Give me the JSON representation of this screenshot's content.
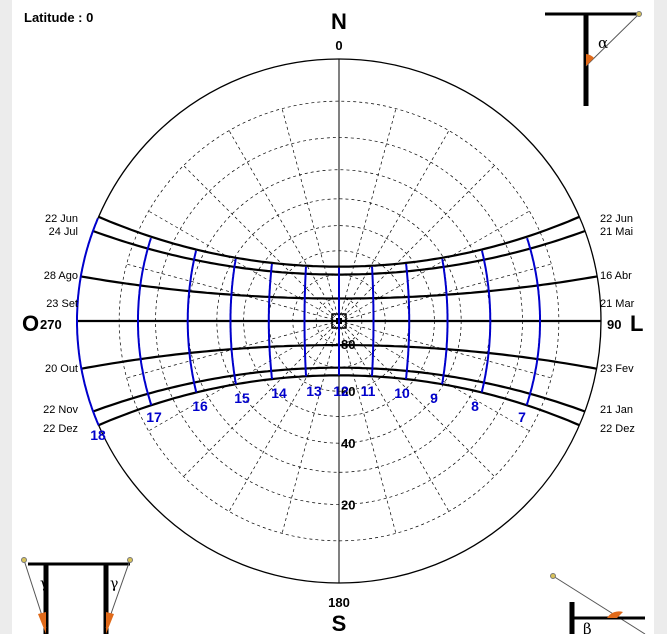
{
  "header": {
    "latitude_text": "Latitude : 0"
  },
  "directions": {
    "north": "N",
    "south": "S",
    "west": "O",
    "east": "L"
  },
  "azimuths": {
    "north": "0",
    "south": "180",
    "west": "270",
    "east": "90"
  },
  "altitude_labels": [
    "20",
    "40",
    "60",
    "80"
  ],
  "date_labels_left": [
    "22 Jun",
    "24 Jul",
    "28 Ago",
    "23 Set",
    "20 Out",
    "22 Nov",
    "22 Dez"
  ],
  "date_labels_right": [
    "22 Jun",
    "21 Mai",
    "16 Abr",
    "21 Mar",
    "23 Fev",
    "21 Jan",
    "22 Dez"
  ],
  "hour_labels": [
    "18",
    "17",
    "16",
    "15",
    "14",
    "13",
    "12",
    "11",
    "10",
    "9",
    "8",
    "7"
  ],
  "corner_symbols": {
    "alpha": "α",
    "beta": "β",
    "gamma": "γ"
  },
  "colors": {
    "hour_lines": "#0000cc",
    "date_lines": "#000000",
    "grid": "#000000",
    "accent": "#e06a1a"
  },
  "chart_data": {
    "type": "sun-path diagram",
    "latitude": 0,
    "altitude_rings": [
      20,
      40,
      60,
      80
    ],
    "azimuth_step_deg": 15,
    "declination_curves": [
      {
        "label": "22 Jun",
        "declination": 23.44
      },
      {
        "label": "21 Mai / 24 Jul",
        "declination": 20.1
      },
      {
        "label": "16 Abr / 28 Ago",
        "declination": 9.8
      },
      {
        "label": "21 Mar / 23 Set",
        "declination": 0
      },
      {
        "label": "23 Fev / 20 Out",
        "declination": -10.5
      },
      {
        "label": "21 Jan / 22 Nov",
        "declination": -20.2
      },
      {
        "label": "22 Dez",
        "declination": -23.44
      }
    ],
    "hours": [
      7,
      8,
      9,
      10,
      11,
      12,
      13,
      14,
      15,
      16,
      17,
      18
    ]
  }
}
